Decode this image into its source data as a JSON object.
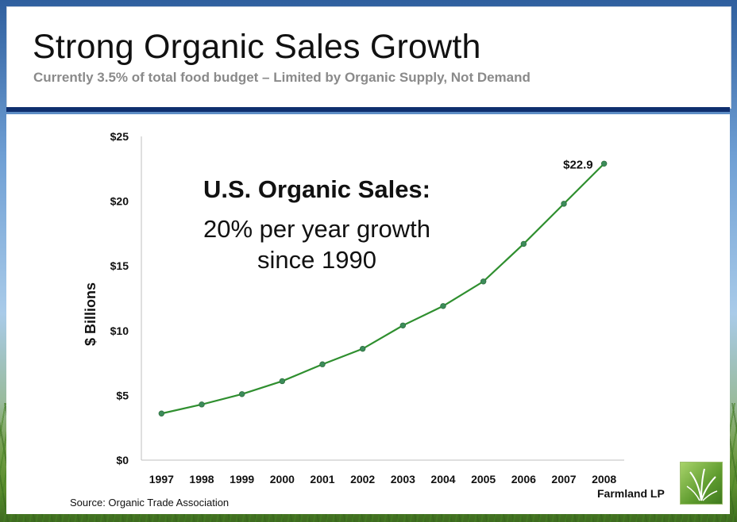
{
  "header": {
    "title": "Strong Organic Sales Growth",
    "subtitle": "Currently 3.5% of total food budget – Limited by Organic Supply, Not Demand"
  },
  "annotation": {
    "title": "U.S. Organic Sales:",
    "line1": "20% per year growth",
    "line2": "since 1990"
  },
  "footer": {
    "source": "Source: Organic Trade Association",
    "brand": "Farmland LP"
  },
  "colors": {
    "line": "#2f8f2f",
    "marker": "#3c8c5a",
    "header_bar": "#0f2f6e"
  },
  "chart_data": {
    "type": "line",
    "title": "",
    "xlabel": "",
    "ylabel": "$ Billions",
    "x": [
      "1997",
      "1998",
      "1999",
      "2000",
      "2001",
      "2002",
      "2003",
      "2004",
      "2005",
      "2006",
      "2007",
      "2008"
    ],
    "series": [
      {
        "values": [
          3.6,
          4.3,
          5.1,
          6.1,
          7.4,
          8.6,
          10.4,
          11.9,
          13.8,
          16.7,
          19.8,
          22.9
        ]
      }
    ],
    "ylim": [
      0,
      25
    ],
    "yticks": [
      0,
      5,
      10,
      15,
      20,
      25
    ],
    "ytick_labels": [
      "$0",
      "$5",
      "$10",
      "$15",
      "$20",
      "$25"
    ],
    "data_labels": [
      {
        "index": 11,
        "text": "$22.9"
      }
    ],
    "grid": false,
    "legend": "none"
  }
}
